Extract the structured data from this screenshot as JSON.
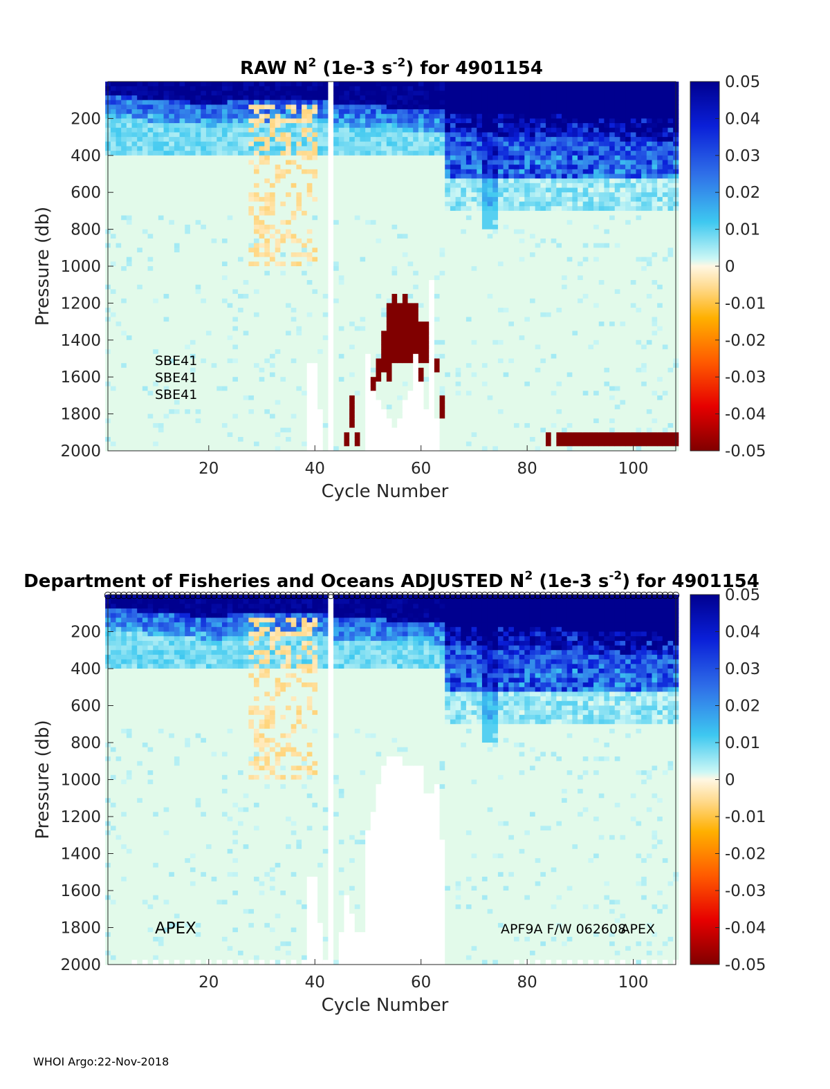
{
  "float_id": "4901154",
  "footer": "WHOI Argo:22-Nov-2018",
  "chart_data": [
    {
      "type": "heatmap",
      "id": "raw",
      "title_prefix": "RAW N",
      "title_sup1": "2",
      "title_mid": " (1e-3 s",
      "title_sup2": "-2",
      "title_suffix": ") for 4901154",
      "xlabel": "Cycle Number",
      "ylabel": "Pressure (db)",
      "xlim": [
        1,
        108
      ],
      "ylim": [
        0,
        2000
      ],
      "y_reversed": true,
      "xticks": [
        20,
        40,
        60,
        80,
        100
      ],
      "yticks": [
        200,
        400,
        600,
        800,
        1000,
        1200,
        1400,
        1600,
        1800,
        2000
      ],
      "clim": [
        -0.05,
        0.05
      ],
      "colorbar_ticks": [
        "0.05",
        "0.04",
        "0.03",
        "0.02",
        "0.01",
        "0",
        "-0.01",
        "-0.02",
        "-0.03",
        "-0.04",
        "-0.05"
      ],
      "gap_cycles": [
        43
      ],
      "annotations_left": [
        "SBE41",
        "SBE41",
        "SBE41"
      ],
      "annotations_right": []
    },
    {
      "type": "heatmap",
      "id": "adjusted",
      "title_prefix": "Department of Fisheries and Oceans  ADJUSTED N",
      "title_sup1": "2",
      "title_mid": " (1e-3 s",
      "title_sup2": "-2",
      "title_suffix": ") for 4901154",
      "xlabel": "Cycle Number",
      "ylabel": "Pressure (db)",
      "xlim": [
        1,
        108
      ],
      "ylim": [
        0,
        2000
      ],
      "y_reversed": true,
      "xticks": [
        20,
        40,
        60,
        80,
        100
      ],
      "yticks": [
        200,
        400,
        600,
        800,
        1000,
        1200,
        1400,
        1600,
        1800,
        2000
      ],
      "clim": [
        -0.05,
        0.05
      ],
      "colorbar_ticks": [
        "0.05",
        "0.04",
        "0.03",
        "0.02",
        "0.01",
        "0",
        "-0.01",
        "-0.02",
        "-0.03",
        "-0.04",
        "-0.05"
      ],
      "gap_cycles": [
        43
      ],
      "annotations_left": [
        "APEX"
      ],
      "annotations_right": [
        "APF9A F/W 062608",
        "APEX"
      ],
      "top_markers": "circles at every cycle"
    }
  ]
}
